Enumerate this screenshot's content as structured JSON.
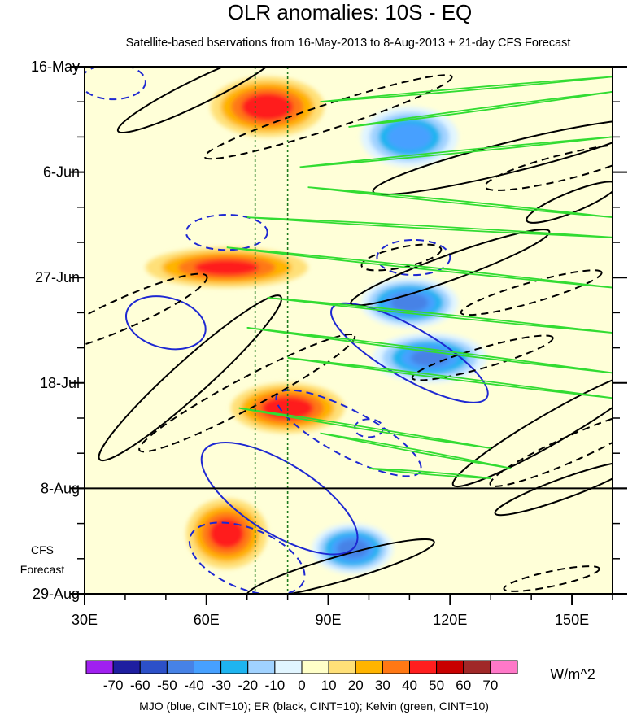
{
  "chart_data": {
    "type": "heatmap",
    "title": "OLR anomalies: 10S - EQ",
    "subtitle": "Satellite-based bservations from 16-May-2013 to 8-Aug-2013 + 21-day CFS Forecast",
    "x_axis": {
      "range": [
        30,
        160
      ],
      "ticks": [
        30,
        60,
        90,
        120,
        150
      ],
      "tick_labels": [
        "30E",
        "60E",
        "90E",
        "120E",
        "150E"
      ],
      "minor_step": 10
    },
    "y_axis": {
      "range_days": [
        0,
        105
      ],
      "ticks_days": [
        0,
        21,
        42,
        63,
        84,
        105
      ],
      "tick_labels": [
        "16-May",
        "6-Jun",
        "27-Jun",
        "18-Jul",
        "8-Aug",
        "29-Aug"
      ],
      "minor_step_days": 7,
      "direction": "down"
    },
    "forecast_divider_day": 84,
    "forecast_label_lines": [
      "CFS",
      "Forecast"
    ],
    "reference_lines_lon": [
      72,
      80
    ],
    "colorbar": {
      "levels": [
        -70,
        -60,
        -50,
        -40,
        -30,
        -20,
        -10,
        0,
        10,
        20,
        30,
        40,
        50,
        60,
        70
      ],
      "level_labels": [
        "-70",
        "-60",
        "-50",
        "-40",
        "-30",
        "-20",
        "-10",
        "0",
        "10",
        "20",
        "30",
        "40",
        "50",
        "60",
        "70"
      ],
      "colors": [
        "#a020f0",
        "#1e1ea0",
        "#2c50c8",
        "#4682e6",
        "#46a0ff",
        "#1eb4f0",
        "#a0d2ff",
        "#e1f5ff",
        "#ffffc8",
        "#ffe078",
        "#ffb400",
        "#ff7814",
        "#ff1e1e",
        "#c80000",
        "#a02828",
        "#ff78c8"
      ],
      "units": "W/m^2"
    },
    "footer": "MJO (blue, CINT=10); ER (black, CINT=10); Kelvin (green, CINT=10)",
    "olr_features": [
      {
        "lon": 75,
        "day": 8,
        "value": 45,
        "rx": 14,
        "ry": 6
      },
      {
        "lon": 65,
        "day": 40,
        "value": 40,
        "rx": 20,
        "ry": 4
      },
      {
        "lon": 80,
        "day": 68,
        "value": 45,
        "rx": 14,
        "ry": 5
      },
      {
        "lon": 65,
        "day": 93,
        "value": 42,
        "rx": 10,
        "ry": 7
      },
      {
        "lon": 110,
        "day": 14,
        "value": -45,
        "rx": 12,
        "ry": 6
      },
      {
        "lon": 110,
        "day": 47,
        "value": -55,
        "rx": 12,
        "ry": 5
      },
      {
        "lon": 115,
        "day": 58,
        "value": -50,
        "rx": 14,
        "ry": 5
      },
      {
        "lon": 96,
        "day": 96,
        "value": -55,
        "rx": 10,
        "ry": 5
      }
    ],
    "contours": {
      "mjo_blue": [
        {
          "lon": 37,
          "day": 3,
          "rx": 8,
          "ry": 3.5,
          "angle": 0,
          "dashed": true
        },
        {
          "lon": 65,
          "day": 33,
          "rx": 10,
          "ry": 3.5,
          "angle": 0,
          "dashed": true
        },
        {
          "lon": 50,
          "day": 51,
          "rx": 10,
          "ry": 5,
          "angle": 15,
          "dashed": false
        },
        {
          "lon": 111,
          "day": 38,
          "rx": 9,
          "ry": 3.5,
          "angle": 0,
          "dashed": true
        },
        {
          "lon": 110,
          "day": 57,
          "rx": 22,
          "ry": 5,
          "angle": 30,
          "dashed": false
        },
        {
          "lon": 95,
          "day": 73,
          "rx": 20,
          "ry": 4.5,
          "angle": 28,
          "dashed": true
        },
        {
          "lon": 100,
          "day": 72,
          "rx": 3.5,
          "ry": 1.8,
          "angle": 0,
          "dashed": true
        },
        {
          "lon": 78,
          "day": 86,
          "rx": 22,
          "ry": 7,
          "angle": 32,
          "dashed": false
        },
        {
          "lon": 70,
          "day": 98,
          "rx": 15,
          "ry": 6,
          "angle": 22,
          "dashed": true
        }
      ],
      "er_black": [
        {
          "lon": 58,
          "day": 5,
          "rx": 22,
          "ry": 2.5,
          "angle": -26,
          "dashed": false
        },
        {
          "lon": 90,
          "day": 10,
          "rx": 32,
          "ry": 2.5,
          "angle": -18,
          "dashed": true
        },
        {
          "lon": 135,
          "day": 18,
          "rx": 35,
          "ry": 3,
          "angle": -14,
          "dashed": false
        },
        {
          "lon": 148,
          "day": 20,
          "rx": 20,
          "ry": 2.5,
          "angle": -14,
          "dashed": true
        },
        {
          "lon": 150,
          "day": 27,
          "rx": 12,
          "ry": 2,
          "angle": -22,
          "dashed": false
        },
        {
          "lon": 120,
          "day": 40,
          "rx": 26,
          "ry": 2.5,
          "angle": -20,
          "dashed": false
        },
        {
          "lon": 108,
          "day": 38,
          "rx": 10,
          "ry": 2,
          "angle": -12,
          "dashed": true
        },
        {
          "lon": 140,
          "day": 45,
          "rx": 18,
          "ry": 2,
          "angle": -16,
          "dashed": true
        },
        {
          "lon": 40,
          "day": 49,
          "rx": 22,
          "ry": 3,
          "angle": -24,
          "dashed": true
        },
        {
          "lon": 56,
          "day": 62,
          "rx": 30,
          "ry": 3.5,
          "angle": -42,
          "dashed": false
        },
        {
          "lon": 70,
          "day": 65,
          "rx": 30,
          "ry": 3,
          "angle": -28,
          "dashed": true
        },
        {
          "lon": 128,
          "day": 58,
          "rx": 18,
          "ry": 2,
          "angle": -16,
          "dashed": true
        },
        {
          "lon": 145,
          "day": 72,
          "rx": 28,
          "ry": 3,
          "angle": -30,
          "dashed": false
        },
        {
          "lon": 150,
          "day": 76,
          "rx": 22,
          "ry": 2.5,
          "angle": -24,
          "dashed": true
        },
        {
          "lon": 148,
          "day": 84,
          "rx": 18,
          "ry": 2,
          "angle": -20,
          "dashed": false
        },
        {
          "lon": 93,
          "day": 100,
          "rx": 24,
          "ry": 2.5,
          "angle": -16,
          "dashed": false
        },
        {
          "lon": 145,
          "day": 102,
          "rx": 12,
          "ry": 1.5,
          "angle": -12,
          "dashed": true
        }
      ],
      "kelvin_green": [
        {
          "lon0": 88,
          "day0": 7,
          "lon1": 160,
          "day1": 2
        },
        {
          "lon0": 95,
          "day0": 12,
          "lon1": 160,
          "day1": 5
        },
        {
          "lon0": 83,
          "day0": 20,
          "lon1": 160,
          "day1": 14
        },
        {
          "lon0": 85,
          "day0": 24,
          "lon1": 160,
          "day1": 30
        },
        {
          "lon0": 70,
          "day0": 30,
          "lon1": 160,
          "day1": 34
        },
        {
          "lon0": 65,
          "day0": 36,
          "lon1": 160,
          "day1": 44
        },
        {
          "lon0": 75,
          "day0": 46,
          "lon1": 160,
          "day1": 53
        },
        {
          "lon0": 70,
          "day0": 52,
          "lon1": 160,
          "day1": 61
        },
        {
          "lon0": 80,
          "day0": 58,
          "lon1": 160,
          "day1": 66
        },
        {
          "lon0": 68,
          "day0": 68,
          "lon1": 130,
          "day1": 76
        },
        {
          "lon0": 88,
          "day0": 73,
          "lon1": 135,
          "day1": 80
        },
        {
          "lon0": 100,
          "day0": 80,
          "lon1": 130,
          "day1": 82
        }
      ]
    }
  }
}
